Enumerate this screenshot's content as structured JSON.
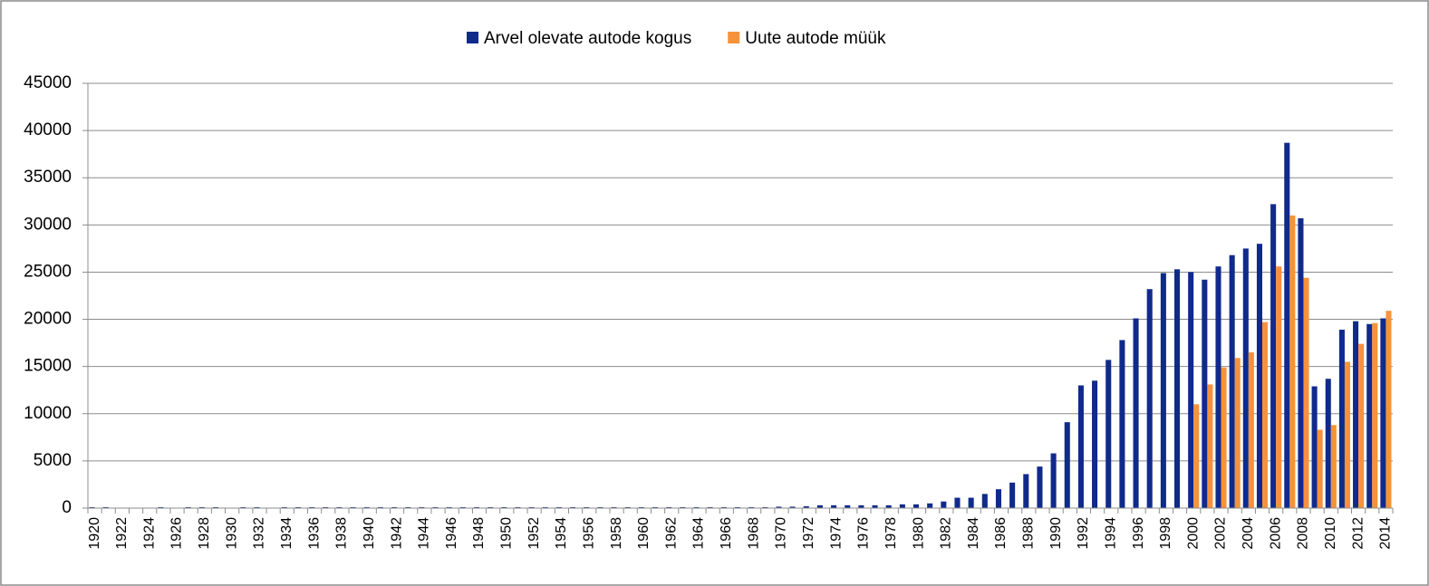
{
  "chart_data": {
    "type": "bar",
    "categories": [
      "1920",
      null,
      "1922",
      null,
      "1924",
      null,
      "1926",
      null,
      "1928",
      null,
      "1930",
      null,
      "1932",
      null,
      "1934",
      null,
      "1936",
      null,
      "1938",
      null,
      "1940",
      null,
      "1942",
      null,
      "1944",
      null,
      "1946",
      null,
      "1948",
      null,
      "1950",
      null,
      "1952",
      null,
      "1954",
      null,
      "1956",
      null,
      "1958",
      null,
      "1960",
      null,
      "1962",
      null,
      "1964",
      null,
      "1966",
      null,
      "1968",
      null,
      "1970",
      null,
      "1972",
      null,
      "1974",
      null,
      "1976",
      null,
      "1978",
      null,
      "1980",
      null,
      "1982",
      null,
      "1984",
      null,
      "1986",
      null,
      "1988",
      null,
      "1990",
      null,
      "1992",
      null,
      "1994",
      null,
      "1996",
      null,
      "1998",
      null,
      "2000",
      null,
      "2002",
      null,
      "2004",
      null,
      "2006",
      null,
      "2008",
      null,
      "2010",
      null,
      "2012",
      null,
      "2014"
    ],
    "series": [
      {
        "name": "Arvel olevate autode kogus",
        "color": "#102a8c",
        "values": [
          100,
          100,
          0,
          0,
          0,
          100,
          0,
          100,
          100,
          100,
          0,
          100,
          100,
          0,
          100,
          100,
          100,
          100,
          100,
          100,
          100,
          100,
          100,
          100,
          100,
          100,
          100,
          100,
          100,
          100,
          100,
          100,
          100,
          100,
          100,
          100,
          100,
          100,
          100,
          100,
          100,
          100,
          100,
          100,
          100,
          100,
          100,
          100,
          100,
          100,
          150,
          150,
          200,
          300,
          300,
          300,
          300,
          300,
          300,
          400,
          400,
          500,
          700,
          1100,
          1100,
          1500,
          2000,
          2700,
          3600,
          4400,
          5800,
          9100,
          13000,
          13500,
          15700,
          17800,
          20100,
          23200,
          24900,
          25300,
          25000,
          24200,
          25600,
          26800,
          27500,
          28000,
          32200,
          38700,
          30700,
          12900,
          13700,
          18900,
          19800,
          19500,
          20100
        ]
      },
      {
        "name": "Uute autode müük",
        "color": "#f7923a",
        "values": [
          null,
          null,
          null,
          null,
          null,
          null,
          null,
          null,
          null,
          null,
          null,
          null,
          null,
          null,
          null,
          null,
          null,
          null,
          null,
          null,
          null,
          null,
          null,
          null,
          null,
          null,
          null,
          null,
          null,
          null,
          null,
          null,
          null,
          null,
          null,
          null,
          null,
          null,
          null,
          null,
          null,
          null,
          null,
          null,
          null,
          null,
          null,
          null,
          null,
          null,
          null,
          null,
          null,
          null,
          null,
          null,
          null,
          null,
          null,
          null,
          null,
          null,
          null,
          null,
          null,
          null,
          null,
          null,
          null,
          null,
          null,
          null,
          null,
          null,
          null,
          null,
          null,
          null,
          null,
          null,
          11000,
          13100,
          14900,
          15900,
          16500,
          19700,
          25600,
          31000,
          24400,
          8300,
          8800,
          15500,
          17400,
          19600,
          20900
        ]
      }
    ],
    "ylim": [
      0,
      45000
    ],
    "yticks": [
      0,
      5000,
      10000,
      15000,
      20000,
      25000,
      30000,
      35000,
      40000,
      45000
    ],
    "grid": true
  }
}
